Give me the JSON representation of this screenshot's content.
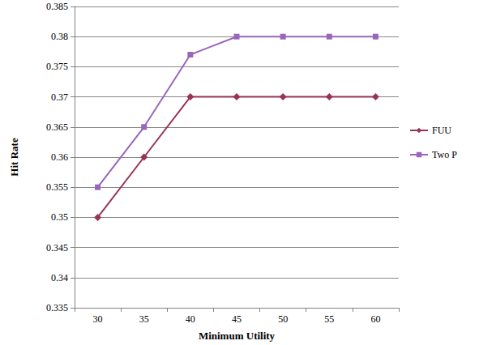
{
  "chart_data": {
    "type": "line",
    "x_label": "Minimum Utility",
    "y_label": "Hit Rate",
    "categories": [
      "30",
      "35",
      "40",
      "45",
      "50",
      "55",
      "60"
    ],
    "series": [
      {
        "name": "FUU",
        "color": "#993355",
        "marker": "diamond",
        "line_style": "solid",
        "values": [
          0.35,
          0.36,
          0.37,
          0.37,
          0.37,
          0.37,
          0.37
        ]
      },
      {
        "name": "Two P",
        "color": "#9966bb",
        "marker": "square",
        "line_style": "solid",
        "values": [
          0.355,
          0.365,
          0.377,
          0.38,
          0.38,
          0.38,
          0.38
        ]
      }
    ],
    "ylim": [
      0.335,
      0.385
    ],
    "yticks": [
      0.335,
      0.34,
      0.345,
      0.35,
      0.355,
      0.36,
      0.365,
      0.37,
      0.375,
      0.38,
      0.385
    ],
    "grid": true,
    "legend": "right"
  }
}
